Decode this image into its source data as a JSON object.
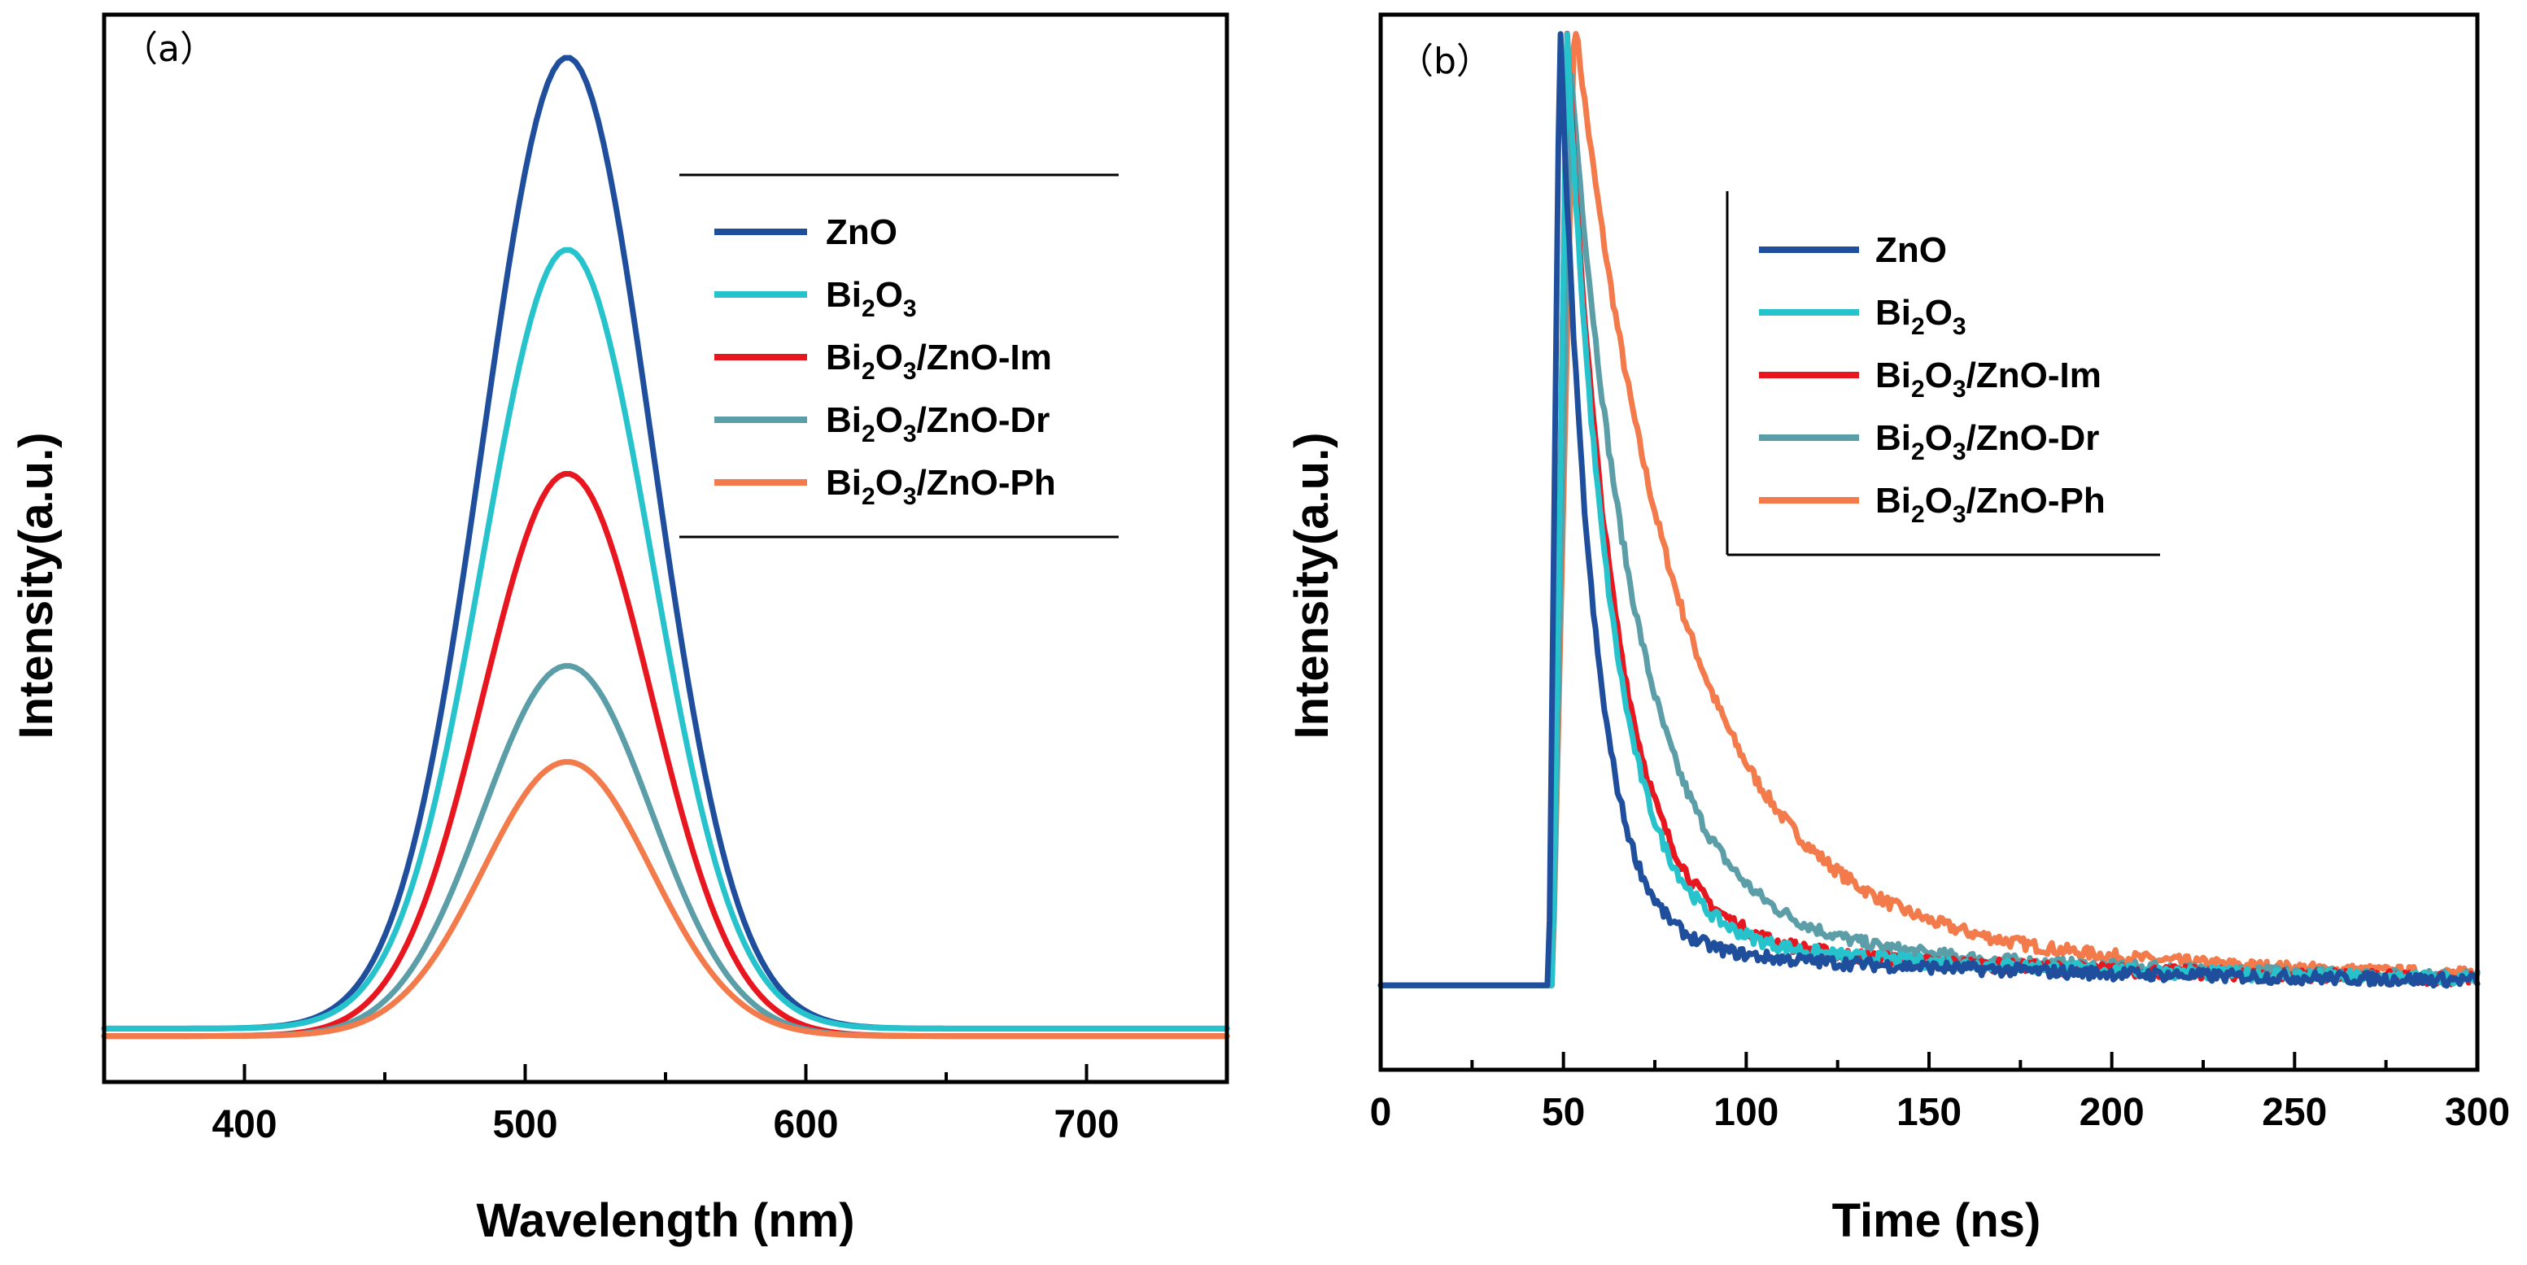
{
  "chart_data": [
    {
      "type": "line",
      "panel_label": "（a）",
      "xlabel": "Wavelength (nm)",
      "ylabel": "Intensity(a.u.)",
      "xlim": [
        350,
        750
      ],
      "ylim": [
        0,
        1.0
      ],
      "xticks": [
        400,
        500,
        600,
        700
      ],
      "y_ticks_labeled": false,
      "grid": false,
      "legend_position": "top-right",
      "peak_center_nm": 515,
      "peak_sigma_nm": 30,
      "series": [
        {
          "name": "ZnO",
          "name_main": "ZnO",
          "color": "#1f4e9c",
          "baseline": 0.05,
          "peak": 0.96
        },
        {
          "name": "Bi2O3",
          "name_main": "Bi",
          "name_sub1": "2",
          "name_mid": "O",
          "name_sub2": "3",
          "name_tail": "",
          "color": "#26c3cc",
          "baseline": 0.05,
          "peak": 0.78
        },
        {
          "name": "Bi2O3/ZnO-Im",
          "name_main": "Bi",
          "name_sub1": "2",
          "name_mid": "O",
          "name_sub2": "3",
          "name_tail": "/ZnO-Im",
          "color": "#e8161e",
          "baseline": 0.043,
          "peak": 0.57
        },
        {
          "name": "Bi2O3/ZnO-Dr",
          "name_main": "Bi",
          "name_sub1": "2",
          "name_mid": "O",
          "name_sub2": "3",
          "name_tail": "/ZnO-Dr",
          "color": "#5b9ea8",
          "baseline": 0.043,
          "peak": 0.39
        },
        {
          "name": "Bi2O3/ZnO-Ph",
          "name_main": "Bi",
          "name_sub1": "2",
          "name_mid": "O",
          "name_sub2": "3",
          "name_tail": "/ZnO-Ph",
          "color": "#f37a4a",
          "baseline": 0.043,
          "peak": 0.3
        }
      ]
    },
    {
      "type": "line",
      "panel_label": "（b）",
      "xlabel": "Time (ns)",
      "ylabel": "Intensity(a.u.)",
      "xlim": [
        0,
        300
      ],
      "ylim": [
        0,
        1.0
      ],
      "xticks": [
        0,
        50,
        100,
        150,
        200,
        250,
        300
      ],
      "y_ticks_labeled": false,
      "grid": false,
      "legend_position": "top-center",
      "baseline": 0.08,
      "series": [
        {
          "name": "ZnO",
          "name_main": "ZnO",
          "color": "#1f4e9c",
          "rise_ns": 46,
          "peak_ns": 49,
          "peak": 1.0,
          "tau_ns": 9,
          "tail": 0.04
        },
        {
          "name": "Bi2O3",
          "name_main": "Bi",
          "name_sub1": "2",
          "name_mid": "O",
          "name_sub2": "3",
          "name_tail": "",
          "color": "#26c3cc",
          "rise_ns": 47,
          "peak_ns": 51,
          "peak": 0.98,
          "tau_ns": 12,
          "tail": 0.05
        },
        {
          "name": "Bi2O3/ZnO-Im",
          "name_main": "Bi",
          "name_sub1": "2",
          "name_mid": "O",
          "name_sub2": "3",
          "name_tail": "/ZnO-Im",
          "color": "#e8161e",
          "rise_ns": 47,
          "peak_ns": 51,
          "peak": 0.98,
          "tau_ns": 13,
          "tail": 0.05
        },
        {
          "name": "Bi2O3/ZnO-Dr",
          "name_main": "Bi",
          "name_sub1": "2",
          "name_mid": "O",
          "name_sub2": "3",
          "name_tail": "/ZnO-Dr",
          "color": "#5b9ea8",
          "rise_ns": 47,
          "peak_ns": 52,
          "peak": 0.95,
          "tau_ns": 18,
          "tail": 0.06
        },
        {
          "name": "Bi2O3/ZnO-Ph",
          "name_main": "Bi",
          "name_sub1": "2",
          "name_mid": "O",
          "name_sub2": "3",
          "name_tail": "/ZnO-Ph",
          "color": "#f37a4a",
          "rise_ns": 47,
          "peak_ns": 53,
          "peak": 1.0,
          "tau_ns": 28,
          "tail": 0.08
        }
      ]
    }
  ]
}
